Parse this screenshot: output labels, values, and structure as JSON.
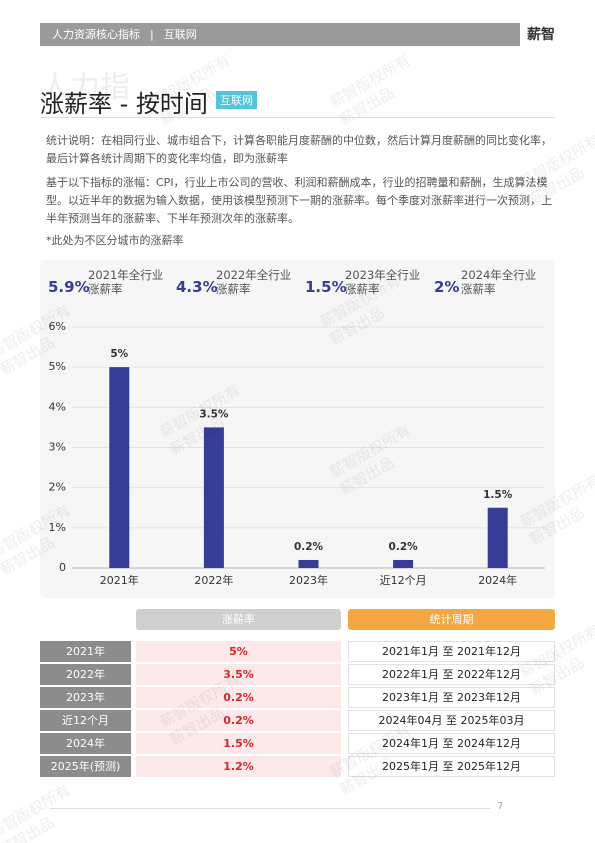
{
  "header": {
    "section": "人力资源核心指标",
    "industry": "互联网",
    "brand": "薪智"
  },
  "title_shadow": "人力指",
  "title": "涨薪率 - 按时间",
  "badge": "互联网",
  "notes": [
    "统计说明：在相同行业、城市组合下，计算各职能月度薪酬的中位数，然后计算月度薪酬的同比变化率，最后计算各统计周期下的变化率均值，即为涨薪率",
    "基于以下指标的涨幅：CPI，行业上市公司的营收、利润和薪酬成本，行业的招聘量和薪酬，生成算法模型。以近半年的数据为输入数据，使用该模型预测下一期的涨薪率。每个季度对涨薪率进行一次预测，上半年预测当年的涨薪率、下半年预测次年的涨薪率。",
    "*此处为不区分城市的涨薪率"
  ],
  "kpis": [
    {
      "value": "5.9%",
      "label": "2021年全行业涨薪率"
    },
    {
      "value": "4.3%",
      "label": "2022年全行业涨薪率"
    },
    {
      "value": "1.5%",
      "label": "2023年全行业涨薪率"
    },
    {
      "value": "2%",
      "label": "2024年全行业涨薪率"
    }
  ],
  "chart_data": {
    "type": "bar",
    "categories": [
      "2021年",
      "2022年",
      "2023年",
      "近12个月",
      "2024年"
    ],
    "values": [
      5,
      3.5,
      0.2,
      0.2,
      1.5
    ],
    "value_labels": [
      "5%",
      "3.5%",
      "0.2%",
      "0.2%",
      "1.5%"
    ],
    "color": "#363d96",
    "ylim": [
      0,
      6
    ],
    "yticks": [
      0,
      {
        "value": 1,
        "label": "1%"
      },
      {
        "value": 2,
        "label": "2%"
      },
      {
        "value": 3,
        "label": "3%"
      },
      {
        "value": 4,
        "label": "4%"
      },
      {
        "value": 5,
        "label": "5%"
      },
      {
        "value": 6,
        "label": "6%"
      }
    ],
    "grid": true
  },
  "table": {
    "header": [
      "涨薪率",
      "统计周期"
    ],
    "rows": [
      [
        "2021年",
        "5%",
        "2021年1月 至 2021年12月"
      ],
      [
        "2022年",
        "3.5%",
        "2022年1月 至 2022年12月"
      ],
      [
        "2023年",
        "0.2%",
        "2023年1月 至 2023年12月"
      ],
      [
        "近12个月",
        "0.2%",
        "2024年04月 至 2025年03月"
      ],
      [
        "2024年",
        "1.5%",
        "2024年1月 至 2024年12月"
      ],
      [
        "2025年(预测)",
        "1.2%",
        "2025年1月 至 2025年12月"
      ]
    ]
  },
  "watermark": [
    "薪智版权所有",
    "薪智出品"
  ],
  "page_number": "7"
}
